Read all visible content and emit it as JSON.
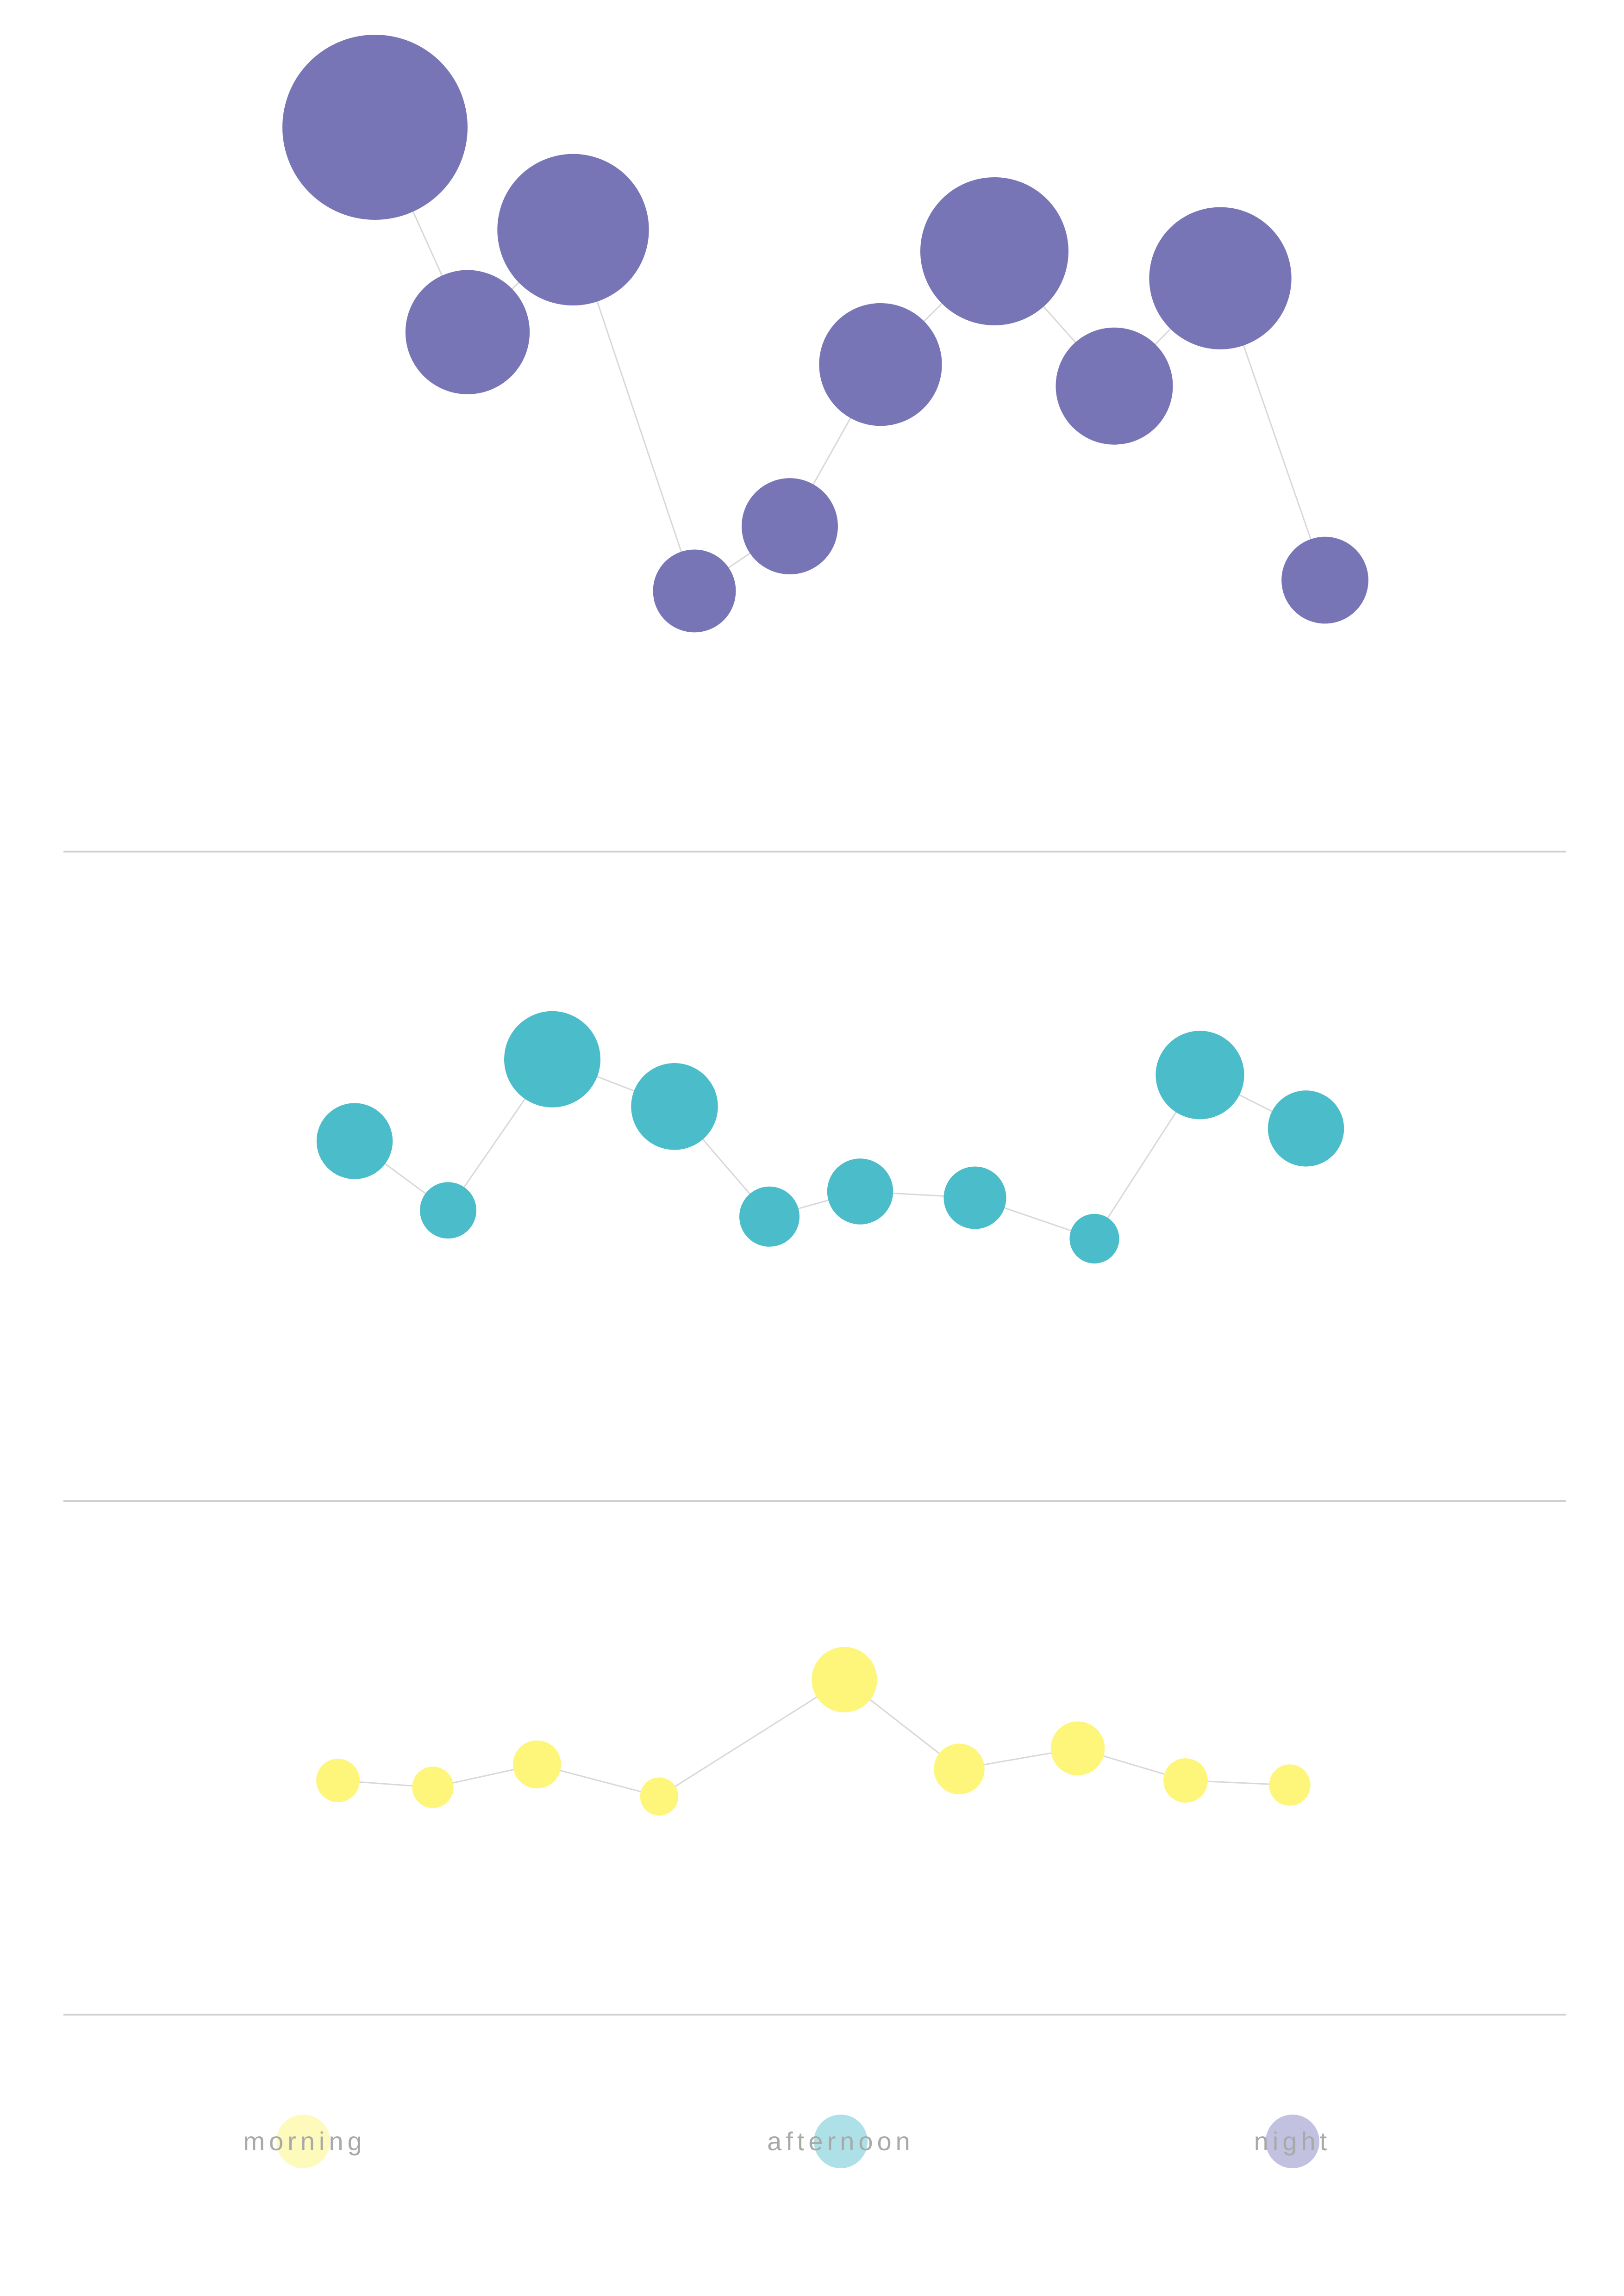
{
  "colors": {
    "morning": "#fdf67a",
    "afternoon": "#4bbcc9",
    "night": "#7875b7",
    "connector": "#d8d8d8",
    "divider": "#d0d0d0"
  },
  "legend": {
    "morning": "morning",
    "afternoon": "afternoon",
    "night": "night"
  },
  "chart_data": [
    {
      "type": "scatter",
      "series_key": "night",
      "x": [
        1,
        2,
        3,
        4,
        5,
        6,
        7,
        8,
        9,
        10,
        11
      ],
      "y": [
        10,
        6.2,
        8.1,
        1.4,
        2.6,
        5.6,
        7.7,
        5.2,
        7.2,
        1.6,
        null
      ],
      "size": [
        10,
        4.5,
        6.7,
        2,
        2.7,
        4.4,
        6.4,
        4,
        5.9,
        2.2,
        null
      ],
      "x_order": [
        1,
        2,
        3,
        4,
        5,
        6,
        7,
        8,
        9,
        10
      ]
    },
    {
      "type": "scatter",
      "series_key": "afternoon",
      "x": [
        1,
        2,
        3,
        4,
        5,
        6,
        7,
        8,
        9,
        10,
        11
      ],
      "y": [
        5.8,
        3.6,
        8.4,
        6.9,
        3.4,
        4.2,
        4,
        2.7,
        7.9,
        6.2,
        null
      ],
      "size": [
        4,
        2.2,
        6.4,
        5.2,
        2.5,
        3,
        2.7,
        1.7,
        5.4,
        4,
        null
      ],
      "x_order": [
        1,
        2,
        3,
        4,
        5,
        6,
        7,
        8,
        9,
        10
      ]
    },
    {
      "type": "scatter",
      "series_key": "morning",
      "x": [
        1,
        2,
        3,
        4,
        5,
        6,
        7,
        8,
        9,
        10
      ],
      "y": [
        4.1,
        3.8,
        4.8,
        3.4,
        8.5,
        4.6,
        5.5,
        4.1,
        3.9,
        null
      ],
      "size": [
        2.2,
        2,
        2.7,
        1.7,
        5,
        3,
        3.4,
        2.3,
        2,
        null
      ],
      "x_order": [
        1,
        2,
        3,
        4,
        5,
        6,
        7,
        8,
        9
      ]
    }
  ]
}
